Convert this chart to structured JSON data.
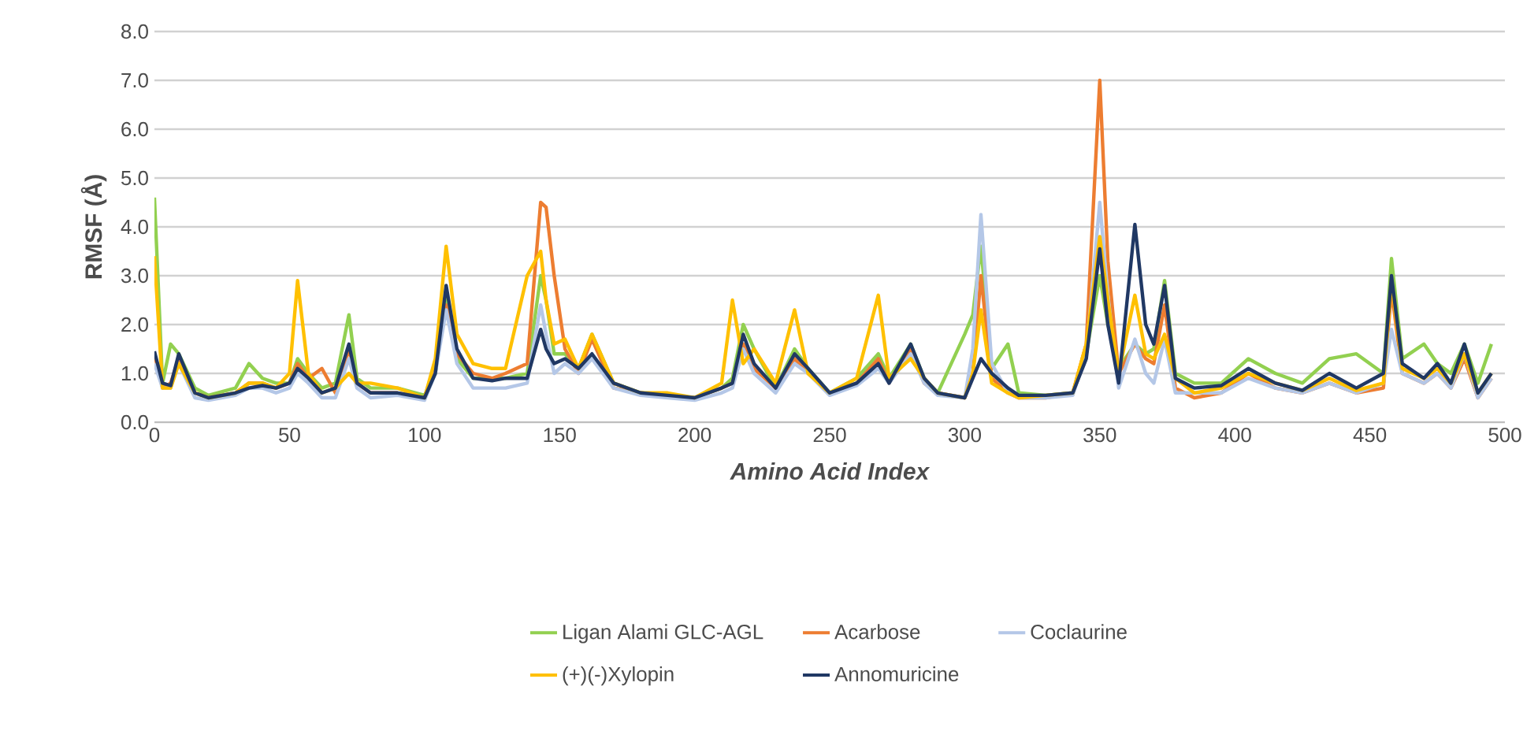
{
  "chart_data": {
    "type": "line",
    "xlabel": "Amino Acid Index",
    "ylabel": "RMSF (Å)",
    "xlim": [
      0,
      500
    ],
    "xticks": [
      0,
      50,
      100,
      150,
      200,
      250,
      300,
      350,
      400,
      450,
      500
    ],
    "ylim": [
      0,
      8
    ],
    "yticks": [
      {
        "value": 0,
        "label": "0.0"
      },
      {
        "value": 1,
        "label": "1.0"
      },
      {
        "value": 2,
        "label": "2.0"
      },
      {
        "value": 3,
        "label": "3.0"
      },
      {
        "value": 4,
        "label": "4.0"
      },
      {
        "value": 5,
        "label": "5.0"
      },
      {
        "value": 6,
        "label": "6.0"
      },
      {
        "value": 7,
        "label": "7.0"
      },
      {
        "value": 8,
        "label": "8.0"
      }
    ],
    "grid": "y",
    "legend": "bottom",
    "marker": "none",
    "line_style": "solid",
    "x": [
      0,
      3,
      6,
      9,
      15,
      20,
      30,
      35,
      40,
      45,
      50,
      53,
      57,
      62,
      67,
      72,
      75,
      80,
      90,
      100,
      104,
      108,
      112,
      118,
      125,
      130,
      138,
      143,
      145,
      148,
      152,
      157,
      162,
      170,
      180,
      190,
      200,
      210,
      214,
      218,
      222,
      230,
      237,
      242,
      250,
      260,
      268,
      272,
      280,
      285,
      290,
      300,
      303,
      306,
      310,
      316,
      320,
      330,
      340,
      345,
      350,
      353,
      357,
      363,
      367,
      370,
      374,
      378,
      385,
      395,
      405,
      415,
      425,
      435,
      445,
      455,
      458,
      462,
      470,
      475,
      480,
      485,
      490,
      495
    ],
    "series": [
      {
        "name": "Ligan Alami GLC-AGL",
        "color": "#92d050",
        "values": [
          4.6,
          0.8,
          1.6,
          1.4,
          0.7,
          0.55,
          0.7,
          1.2,
          0.9,
          0.8,
          0.8,
          1.3,
          1.0,
          0.7,
          0.8,
          2.2,
          0.9,
          0.7,
          0.7,
          0.55,
          1.0,
          2.6,
          1.3,
          0.9,
          0.9,
          0.9,
          1.0,
          3.0,
          2.5,
          1.4,
          1.4,
          1.1,
          1.8,
          0.8,
          0.6,
          0.55,
          0.5,
          0.7,
          0.9,
          2.0,
          1.5,
          0.7,
          1.5,
          1.1,
          0.6,
          0.9,
          1.4,
          0.9,
          1.6,
          0.9,
          0.6,
          1.8,
          2.2,
          3.6,
          1.1,
          1.6,
          0.6,
          0.55,
          0.6,
          1.4,
          3.0,
          2.0,
          1.1,
          1.6,
          1.4,
          1.5,
          2.9,
          1.0,
          0.8,
          0.8,
          1.3,
          1.0,
          0.8,
          1.3,
          1.4,
          1.0,
          3.35,
          1.3,
          1.6,
          1.2,
          1.0,
          1.6,
          0.8,
          1.6
        ]
      },
      {
        "name": "Acarbose",
        "color": "#ed7d31",
        "values": [
          1.4,
          0.7,
          0.8,
          1.3,
          0.6,
          0.5,
          0.6,
          0.8,
          0.8,
          0.7,
          0.8,
          1.2,
          0.9,
          1.1,
          0.6,
          1.5,
          0.8,
          0.6,
          0.6,
          0.5,
          1.2,
          2.4,
          1.4,
          1.0,
          0.9,
          1.0,
          1.2,
          4.5,
          4.4,
          3.0,
          1.5,
          1.0,
          1.7,
          0.7,
          0.6,
          0.55,
          0.5,
          0.7,
          0.8,
          1.6,
          1.1,
          0.7,
          1.3,
          1.0,
          0.6,
          0.8,
          1.3,
          0.8,
          1.5,
          0.8,
          0.6,
          0.5,
          1.0,
          3.0,
          0.9,
          0.6,
          0.5,
          0.5,
          0.6,
          1.6,
          7.0,
          3.3,
          1.0,
          1.6,
          1.3,
          1.2,
          2.4,
          0.7,
          0.5,
          0.6,
          1.0,
          0.7,
          0.6,
          0.8,
          0.6,
          0.7,
          2.7,
          1.0,
          0.8,
          1.0,
          0.7,
          1.3,
          0.5,
          0.9
        ]
      },
      {
        "name": "Coclaurine",
        "color": "#b4c7e7",
        "values": [
          1.2,
          0.7,
          0.7,
          1.2,
          0.5,
          0.45,
          0.55,
          0.7,
          0.7,
          0.6,
          0.7,
          1.0,
          0.8,
          0.5,
          0.5,
          1.3,
          0.7,
          0.5,
          0.55,
          0.45,
          1.0,
          2.3,
          1.2,
          0.7,
          0.7,
          0.7,
          0.8,
          2.4,
          1.8,
          1.0,
          1.2,
          1.0,
          1.3,
          0.7,
          0.55,
          0.5,
          0.45,
          0.6,
          0.7,
          1.5,
          1.0,
          0.6,
          1.2,
          1.0,
          0.55,
          0.75,
          1.1,
          0.8,
          1.4,
          0.8,
          0.55,
          0.5,
          1.5,
          4.25,
          1.2,
          0.6,
          0.5,
          0.5,
          0.55,
          1.4,
          4.5,
          2.6,
          0.7,
          1.7,
          1.0,
          0.8,
          1.7,
          0.6,
          0.6,
          0.6,
          0.9,
          0.7,
          0.6,
          0.8,
          0.6,
          0.8,
          1.9,
          1.0,
          0.8,
          1.0,
          0.7,
          1.4,
          0.5,
          0.9
        ]
      },
      {
        "name": "(+)(-)Xylopin",
        "color": "#ffc000",
        "values": [
          3.4,
          0.7,
          0.7,
          1.2,
          0.6,
          0.5,
          0.6,
          0.8,
          0.8,
          0.7,
          1.0,
          2.9,
          1.0,
          0.6,
          0.7,
          1.0,
          0.8,
          0.8,
          0.7,
          0.5,
          1.3,
          3.6,
          1.8,
          1.2,
          1.1,
          1.1,
          3.0,
          3.5,
          2.5,
          1.6,
          1.7,
          1.1,
          1.8,
          0.8,
          0.6,
          0.6,
          0.5,
          0.8,
          2.5,
          1.2,
          1.5,
          0.8,
          2.3,
          1.0,
          0.6,
          0.9,
          2.6,
          0.9,
          1.3,
          0.9,
          0.6,
          0.5,
          1.0,
          2.3,
          0.8,
          0.6,
          0.5,
          0.55,
          0.6,
          1.6,
          3.8,
          2.5,
          1.0,
          2.6,
          1.4,
          1.3,
          1.8,
          0.9,
          0.6,
          0.7,
          1.0,
          0.8,
          0.65,
          0.9,
          0.65,
          0.8,
          2.9,
          1.1,
          0.9,
          1.1,
          0.8,
          1.4,
          0.6,
          1.0
        ]
      },
      {
        "name": "Annomuricine",
        "color": "#203864",
        "values": [
          1.45,
          0.8,
          0.75,
          1.4,
          0.6,
          0.5,
          0.6,
          0.7,
          0.75,
          0.7,
          0.8,
          1.1,
          0.9,
          0.6,
          0.7,
          1.6,
          0.8,
          0.6,
          0.6,
          0.5,
          1.0,
          2.8,
          1.5,
          0.9,
          0.85,
          0.9,
          0.9,
          1.9,
          1.5,
          1.2,
          1.3,
          1.1,
          1.4,
          0.8,
          0.6,
          0.55,
          0.5,
          0.7,
          0.8,
          1.8,
          1.2,
          0.7,
          1.4,
          1.1,
          0.6,
          0.8,
          1.2,
          0.8,
          1.6,
          0.9,
          0.6,
          0.5,
          0.9,
          1.3,
          1.0,
          0.7,
          0.55,
          0.55,
          0.6,
          1.3,
          3.55,
          2.0,
          0.8,
          4.05,
          2.0,
          1.6,
          2.8,
          0.9,
          0.7,
          0.75,
          1.1,
          0.8,
          0.65,
          1.0,
          0.7,
          1.0,
          3.0,
          1.2,
          0.9,
          1.2,
          0.8,
          1.6,
          0.6,
          1.0
        ]
      }
    ]
  }
}
